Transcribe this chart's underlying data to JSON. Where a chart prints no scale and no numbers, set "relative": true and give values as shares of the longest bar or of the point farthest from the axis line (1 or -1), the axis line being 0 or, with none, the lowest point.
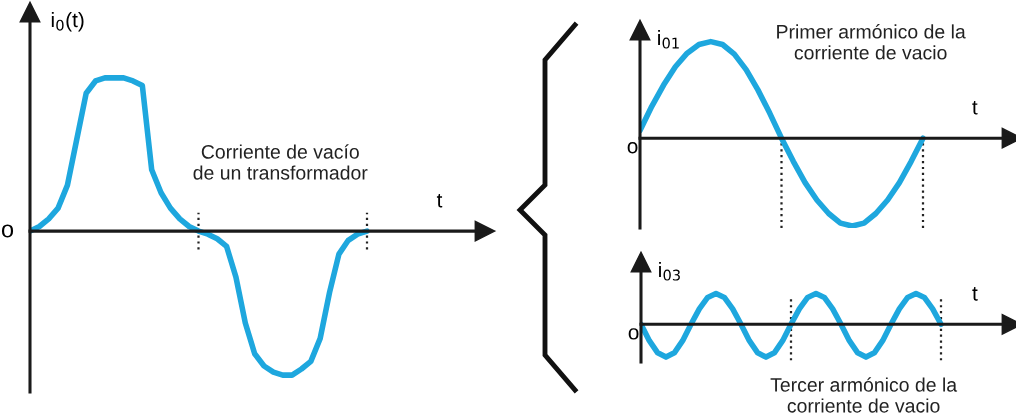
{
  "chart_data": [
    {
      "type": "line",
      "relative": true,
      "tick_labels": false,
      "ylabel": "i$_{0}$(t)",
      "xlabel": "t",
      "categories": [
        null,
        null,
        null,
        null,
        null,
        null,
        null,
        null,
        null,
        null,
        null,
        null,
        null,
        null,
        null,
        null,
        null,
        null,
        null,
        null,
        null,
        null,
        null,
        null,
        null,
        null,
        null,
        null,
        null,
        null,
        null,
        null,
        null,
        null,
        null,
        null,
        null
      ],
      "series": [
        {
          "color": "#1ea7de",
          "values": [
            0,
            0.03,
            0.08,
            0.15,
            0.3,
            0.6,
            0.9,
            0.98,
            1,
            1,
            1,
            0.98,
            0.95,
            0.4,
            0.25,
            0.15,
            0.08,
            0.03,
            0,
            -0.02,
            -0.05,
            -0.1,
            -0.3,
            -0.6,
            -0.8,
            -0.88,
            -0.92,
            -0.94,
            -0.94,
            -0.9,
            -0.85,
            -0.7,
            -0.4,
            -0.15,
            -0.06,
            -0.02,
            0
          ]
        }
      ],
      "annotations": [
        "o",
        "Corriente de vacío\nde un transformador"
      ]
    },
    {
      "type": "line",
      "relative": true,
      "tick_labels": false,
      "ylabel": "i$_{01}$",
      "xlabel": "t",
      "categories": [
        null,
        null,
        null,
        null,
        null,
        null,
        null,
        null,
        null,
        null,
        null,
        null,
        null,
        null,
        null,
        null,
        null,
        null,
        null,
        null,
        null,
        null,
        null,
        null,
        null
      ],
      "series": [
        {
          "color": "#1ea7de",
          "values": [
            0.08,
            0.33,
            0.55,
            0.74,
            0.88,
            0.97,
            1,
            0.97,
            0.87,
            0.71,
            0.5,
            0.26,
            0,
            -0.24,
            -0.46,
            -0.64,
            -0.78,
            -0.88,
            -0.91,
            -0.88,
            -0.78,
            -0.64,
            -0.46,
            -0.24,
            0
          ]
        }
      ],
      "annotations": [
        "o",
        "Primer armónico de la\ncorriente de vacio"
      ]
    },
    {
      "type": "line",
      "relative": true,
      "tick_labels": false,
      "ylabel": "i$_{03}$",
      "xlabel": "t",
      "categories": [
        null,
        null,
        null,
        null,
        null,
        null,
        null,
        null,
        null,
        null,
        null,
        null,
        null,
        null,
        null,
        null,
        null,
        null,
        null,
        null,
        null,
        null,
        null,
        null,
        null,
        null,
        null,
        null,
        null,
        null,
        null,
        null,
        null,
        null,
        null,
        null,
        null
      ],
      "series": [
        {
          "color": "#1ea7de",
          "values": [
            0,
            -0.5,
            -0.87,
            -1,
            -0.87,
            -0.5,
            0,
            0.47,
            0.82,
            0.94,
            0.82,
            0.47,
            0,
            -0.5,
            -0.87,
            -1,
            -0.87,
            -0.5,
            0,
            0.47,
            0.82,
            0.94,
            0.82,
            0.47,
            0,
            -0.5,
            -0.87,
            -1,
            -0.87,
            -0.5,
            0,
            0.47,
            0.82,
            0.94,
            0.82,
            0.47,
            0
          ]
        }
      ],
      "annotations": [
        "o",
        "Tercer armónico de la\ncorriente de vacio"
      ]
    }
  ]
}
